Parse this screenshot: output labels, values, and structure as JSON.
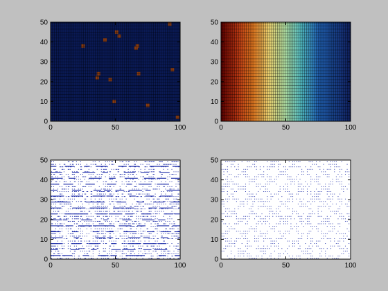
{
  "figure": {
    "background": "#c0c0c0"
  },
  "chart_data": [
    {
      "type": "heatmap",
      "description": "mostly uniform dark navy field with sparse dark-orange dots on a dense black grid",
      "xlim": [
        0,
        100
      ],
      "ylim": [
        0,
        50
      ],
      "xticks": [
        0,
        50,
        100
      ],
      "yticks": [
        0,
        10,
        20,
        30,
        40,
        50
      ],
      "grid": true,
      "base_color": "#0a1a55",
      "highlight_color": "#8a3c10",
      "highlights": [
        [
          25,
          38
        ],
        [
          36,
          22
        ],
        [
          37,
          24
        ],
        [
          42,
          41
        ],
        [
          46,
          21
        ],
        [
          51,
          45
        ],
        [
          53,
          43
        ],
        [
          49,
          10
        ],
        [
          66,
          37
        ],
        [
          67,
          38
        ],
        [
          68,
          24
        ],
        [
          75,
          8
        ],
        [
          92,
          49
        ],
        [
          94,
          26
        ],
        [
          98,
          2
        ]
      ]
    },
    {
      "type": "heatmap",
      "description": "horizontal jet-colormap gradient from dark red (left) to dark blue (right) with dense grid",
      "xlim": [
        0,
        100
      ],
      "ylim": [
        0,
        50
      ],
      "xticks": [
        0,
        50,
        100
      ],
      "yticks": [
        0,
        10,
        20,
        30,
        40,
        50
      ],
      "grid": true,
      "colormap_stops": [
        {
          "x": 0,
          "color": "#5a0000"
        },
        {
          "x": 12,
          "color": "#b03010"
        },
        {
          "x": 25,
          "color": "#e07820"
        },
        {
          "x": 37,
          "color": "#e8d070"
        },
        {
          "x": 50,
          "color": "#a8d8a0"
        },
        {
          "x": 62,
          "color": "#50b8c0"
        },
        {
          "x": 75,
          "color": "#2060b0"
        },
        {
          "x": 100,
          "color": "#102060"
        }
      ]
    },
    {
      "type": "scatter",
      "description": "dense blue dot field on white with horizontal streaks",
      "xlim": [
        0,
        100
      ],
      "ylim": [
        0,
        50
      ],
      "xticks": [
        0,
        50,
        100
      ],
      "yticks": [
        0,
        10,
        20,
        30,
        40,
        50
      ],
      "grid": false,
      "point_color": "#1a2aa8",
      "streak_rows": [
        2,
        5,
        8,
        11,
        14,
        17,
        20,
        23,
        26,
        29,
        32,
        35,
        38,
        41,
        44,
        47
      ]
    },
    {
      "type": "scatter",
      "description": "sparser blue dot field on white with diagonal cross-hatch pattern",
      "xlim": [
        0,
        100
      ],
      "ylim": [
        0,
        50
      ],
      "xticks": [
        0,
        50,
        100
      ],
      "yticks": [
        0,
        10,
        20,
        30,
        40,
        50
      ],
      "grid": false,
      "point_color": "#1a2aa8"
    }
  ]
}
